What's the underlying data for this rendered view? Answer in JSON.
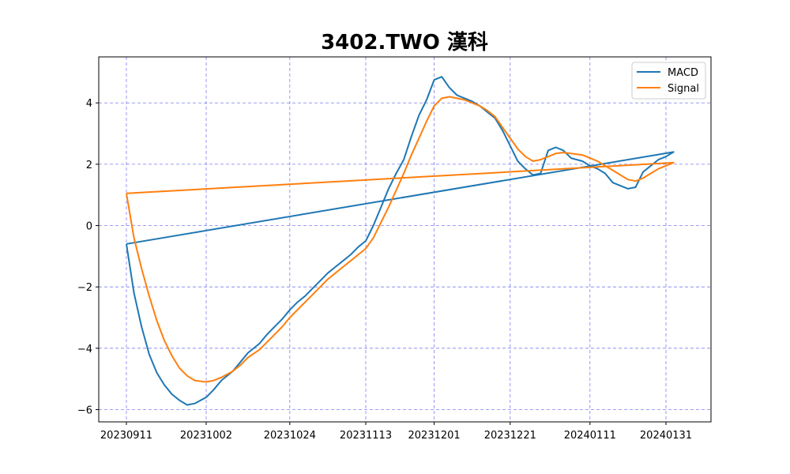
{
  "chart_data": {
    "type": "line",
    "title": "3402.TWO 漢科",
    "xlabel": "",
    "ylabel": "",
    "x_ticks": [
      "20230911",
      "20231002",
      "20231024",
      "20231113",
      "20231201",
      "20231221",
      "20240111",
      "20240131"
    ],
    "y_ticks": [
      4,
      2,
      0,
      -2,
      -4,
      -6
    ],
    "y_tick_labels": [
      "4",
      "2",
      "0",
      "−2",
      "−4",
      "−6"
    ],
    "ylim": [
      -6.4,
      5.5
    ],
    "grid": true,
    "legend_position": "top-right",
    "colors": {
      "MACD": "#1f77b4",
      "Signal": "#ff7f0e",
      "grid": "#7070ee"
    },
    "series": [
      {
        "name": "MACD",
        "points": [
          [
            "20230911",
            -0.6
          ],
          [
            "20230913",
            -2.2
          ],
          [
            "20230915",
            -3.3
          ],
          [
            "20230917",
            -4.2
          ],
          [
            "20230919",
            -4.8
          ],
          [
            "20230921",
            -5.2
          ],
          [
            "20230923",
            -5.5
          ],
          [
            "20230925",
            -5.7
          ],
          [
            "20230927",
            -5.85
          ],
          [
            "20230929",
            -5.8
          ],
          [
            "20231002",
            -5.6
          ],
          [
            "20231004",
            -5.35
          ],
          [
            "20231006",
            -5.05
          ],
          [
            "20231009",
            -4.75
          ],
          [
            "20231011",
            -4.45
          ],
          [
            "20231013",
            -4.15
          ],
          [
            "20231016",
            -3.85
          ],
          [
            "20231018",
            -3.55
          ],
          [
            "20231020",
            -3.3
          ],
          [
            "20231022",
            -3.05
          ],
          [
            "20231024",
            -2.75
          ],
          [
            "20231026",
            -2.5
          ],
          [
            "20231028",
            -2.3
          ],
          [
            "20231030",
            -2.05
          ],
          [
            "20231101",
            -1.8
          ],
          [
            "20231103",
            -1.55
          ],
          [
            "20231105",
            -1.35
          ],
          [
            "20231107",
            -1.15
          ],
          [
            "20231109",
            -0.95
          ],
          [
            "20231111",
            -0.7
          ],
          [
            "20231113",
            -0.5
          ],
          [
            "20231115",
            0.0
          ],
          [
            "20231117",
            0.6
          ],
          [
            "20231119",
            1.2
          ],
          [
            "20231121",
            1.7
          ],
          [
            "20231123",
            2.15
          ],
          [
            "20231125",
            2.9
          ],
          [
            "20231127",
            3.6
          ],
          [
            "20231129",
            4.1
          ],
          [
            "20231201",
            4.75
          ],
          [
            "20231203",
            4.85
          ],
          [
            "20231205",
            4.5
          ],
          [
            "20231207",
            4.25
          ],
          [
            "20231209",
            4.15
          ],
          [
            "20231211",
            4.05
          ],
          [
            "20231213",
            3.9
          ],
          [
            "20231215",
            3.7
          ],
          [
            "20231217",
            3.5
          ],
          [
            "20231219",
            3.1
          ],
          [
            "20231221",
            2.6
          ],
          [
            "20231223",
            2.1
          ],
          [
            "20231225",
            1.85
          ],
          [
            "20231227",
            1.65
          ],
          [
            "20231229",
            1.7
          ],
          [
            "20231231",
            2.45
          ],
          [
            "20240102",
            2.55
          ],
          [
            "20240104",
            2.45
          ],
          [
            "20240106",
            2.2
          ],
          [
            "20240109",
            2.1
          ],
          [
            "20240111",
            1.95
          ],
          [
            "20240113",
            1.85
          ],
          [
            "20240115",
            1.7
          ],
          [
            "20240117",
            1.4
          ],
          [
            "20240119",
            1.3
          ],
          [
            "20240121",
            1.2
          ],
          [
            "20240123",
            1.25
          ],
          [
            "20240125",
            1.75
          ],
          [
            "20240127",
            1.95
          ],
          [
            "20240129",
            2.15
          ],
          [
            "20240131",
            2.25
          ],
          [
            "20240202",
            2.4
          ]
        ]
      },
      {
        "name": "Signal",
        "points": [
          [
            "20230911",
            1.05
          ],
          [
            "20230913",
            -0.4
          ],
          [
            "20230915",
            -1.4
          ],
          [
            "20230917",
            -2.3
          ],
          [
            "20230919",
            -3.1
          ],
          [
            "20230921",
            -3.75
          ],
          [
            "20230923",
            -4.25
          ],
          [
            "20230925",
            -4.65
          ],
          [
            "20230927",
            -4.9
          ],
          [
            "20230929",
            -5.05
          ],
          [
            "20231002",
            -5.1
          ],
          [
            "20231004",
            -5.05
          ],
          [
            "20231006",
            -4.95
          ],
          [
            "20231009",
            -4.75
          ],
          [
            "20231011",
            -4.55
          ],
          [
            "20231013",
            -4.3
          ],
          [
            "20231016",
            -4.05
          ],
          [
            "20231018",
            -3.8
          ],
          [
            "20231020",
            -3.55
          ],
          [
            "20231022",
            -3.3
          ],
          [
            "20231024",
            -3.0
          ],
          [
            "20231026",
            -2.75
          ],
          [
            "20231028",
            -2.5
          ],
          [
            "20231030",
            -2.25
          ],
          [
            "20231101",
            -2.0
          ],
          [
            "20231103",
            -1.75
          ],
          [
            "20231105",
            -1.55
          ],
          [
            "20231107",
            -1.35
          ],
          [
            "20231109",
            -1.15
          ],
          [
            "20231111",
            -0.95
          ],
          [
            "20231113",
            -0.75
          ],
          [
            "20231115",
            -0.4
          ],
          [
            "20231117",
            0.1
          ],
          [
            "20231119",
            0.6
          ],
          [
            "20231121",
            1.15
          ],
          [
            "20231123",
            1.7
          ],
          [
            "20231125",
            2.3
          ],
          [
            "20231127",
            2.85
          ],
          [
            "20231129",
            3.4
          ],
          [
            "20231201",
            3.9
          ],
          [
            "20231203",
            4.15
          ],
          [
            "20231205",
            4.2
          ],
          [
            "20231207",
            4.15
          ],
          [
            "20231209",
            4.1
          ],
          [
            "20231211",
            4.0
          ],
          [
            "20231213",
            3.9
          ],
          [
            "20231215",
            3.75
          ],
          [
            "20231217",
            3.55
          ],
          [
            "20231219",
            3.2
          ],
          [
            "20231221",
            2.85
          ],
          [
            "20231223",
            2.5
          ],
          [
            "20231225",
            2.25
          ],
          [
            "20231227",
            2.1
          ],
          [
            "20231229",
            2.15
          ],
          [
            "20231231",
            2.25
          ],
          [
            "20240102",
            2.35
          ],
          [
            "20240104",
            2.38
          ],
          [
            "20240106",
            2.35
          ],
          [
            "20240109",
            2.3
          ],
          [
            "20240111",
            2.2
          ],
          [
            "20240113",
            2.1
          ],
          [
            "20240115",
            1.95
          ],
          [
            "20240117",
            1.8
          ],
          [
            "20240119",
            1.65
          ],
          [
            "20240121",
            1.5
          ],
          [
            "20240123",
            1.45
          ],
          [
            "20240125",
            1.55
          ],
          [
            "20240127",
            1.7
          ],
          [
            "20240129",
            1.85
          ],
          [
            "20240131",
            1.95
          ],
          [
            "20240202",
            2.05
          ]
        ]
      }
    ]
  }
}
